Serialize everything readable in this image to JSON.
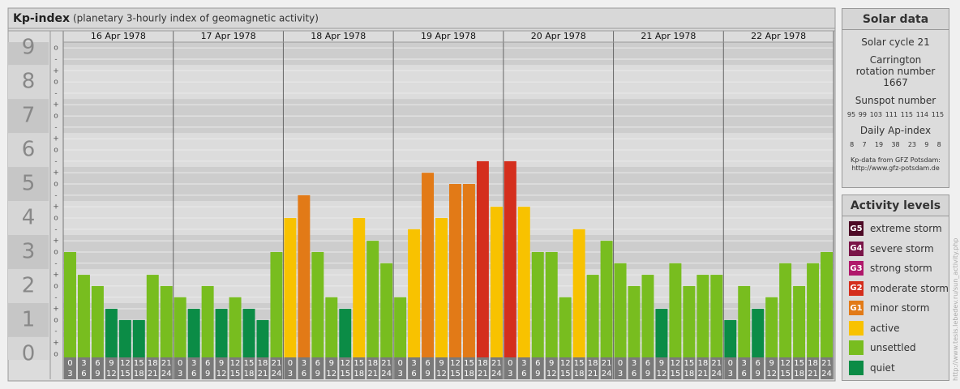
{
  "header": {
    "title": "Kp-index",
    "subtitle": "(planetary 3-hourly index of geomagnetic activity)"
  },
  "chart_data": {
    "type": "bar",
    "days": [
      "16 Apr 1978",
      "17 Apr 1978",
      "18 Apr 1978",
      "19 Apr 1978",
      "20 Apr 1978",
      "21 Apr 1978",
      "22 Apr 1978"
    ],
    "hours": [
      [
        "0",
        "3"
      ],
      [
        "3",
        "6"
      ],
      [
        "6",
        "9"
      ],
      [
        "9",
        "12"
      ],
      [
        "12",
        "15"
      ],
      [
        "15",
        "18"
      ],
      [
        "18",
        "21"
      ],
      [
        "21",
        "24"
      ]
    ],
    "values": [
      [
        3,
        2.33,
        2,
        1.33,
        1,
        1,
        2.33,
        2
      ],
      [
        1.67,
        1.33,
        2,
        1.33,
        1.67,
        1.33,
        1,
        3
      ],
      [
        4,
        4.67,
        3,
        1.67,
        1.33,
        4,
        3.33,
        2.67
      ],
      [
        1.67,
        3.67,
        5.33,
        4,
        5,
        5,
        5.67,
        4.33
      ],
      [
        5.67,
        4.33,
        3,
        3,
        1.67,
        3.67,
        2.33,
        3.33
      ],
      [
        2.67,
        2,
        2.33,
        1.33,
        2.67,
        2,
        2.33,
        2.33
      ],
      [
        1,
        2,
        1.33,
        1.67,
        2.67,
        2,
        2.67,
        3
      ]
    ],
    "colors": [
      [
        "#78bd1f",
        "#78bd1f",
        "#78bd1f",
        "#0b8c46",
        "#0b8c46",
        "#0b8c46",
        "#78bd1f",
        "#78bd1f"
      ],
      [
        "#78bd1f",
        "#0b8c46",
        "#78bd1f",
        "#0b8c46",
        "#78bd1f",
        "#0b8c46",
        "#0b8c46",
        "#78bd1f"
      ],
      [
        "#f8c200",
        "#e27a17",
        "#78bd1f",
        "#78bd1f",
        "#0b8c46",
        "#f8c200",
        "#78bd1f",
        "#78bd1f"
      ],
      [
        "#78bd1f",
        "#f8c200",
        "#e27a17",
        "#f8c200",
        "#e27a17",
        "#e27a17",
        "#d42e1d",
        "#f8c200"
      ],
      [
        "#d42e1d",
        "#f8c200",
        "#78bd1f",
        "#78bd1f",
        "#78bd1f",
        "#f8c200",
        "#78bd1f",
        "#78bd1f"
      ],
      [
        "#78bd1f",
        "#78bd1f",
        "#78bd1f",
        "#0b8c46",
        "#78bd1f",
        "#78bd1f",
        "#78bd1f",
        "#78bd1f"
      ],
      [
        "#0b8c46",
        "#78bd1f",
        "#0b8c46",
        "#78bd1f",
        "#78bd1f",
        "#78bd1f",
        "#78bd1f",
        "#78bd1f"
      ]
    ],
    "ylim": [
      -0.17,
      9.17
    ],
    "yticks": [
      0,
      1,
      2,
      3,
      4,
      5,
      6,
      7,
      8,
      9
    ],
    "minor_yticks": [
      {
        "value": 0,
        "label": "o"
      },
      {
        "value": 0.33,
        "label": "+"
      },
      {
        "value": 0.67,
        "label": "-"
      },
      {
        "value": 1,
        "label": "o"
      },
      {
        "value": 1.33,
        "label": "+"
      },
      {
        "value": 1.67,
        "label": "-"
      },
      {
        "value": 2,
        "label": "o"
      },
      {
        "value": 2.33,
        "label": "+"
      },
      {
        "value": 2.67,
        "label": "-"
      },
      {
        "value": 3,
        "label": "o"
      },
      {
        "value": 3.33,
        "label": "+"
      },
      {
        "value": 3.67,
        "label": "-"
      },
      {
        "value": 4,
        "label": "o"
      },
      {
        "value": 4.33,
        "label": "+"
      },
      {
        "value": 4.67,
        "label": "-"
      },
      {
        "value": 5,
        "label": "o"
      },
      {
        "value": 5.33,
        "label": "+"
      },
      {
        "value": 5.67,
        "label": "-"
      },
      {
        "value": 6,
        "label": "o"
      },
      {
        "value": 6.33,
        "label": "+"
      },
      {
        "value": 6.67,
        "label": "-"
      },
      {
        "value": 7,
        "label": "o"
      },
      {
        "value": 7.33,
        "label": "+"
      },
      {
        "value": 7.67,
        "label": "-"
      },
      {
        "value": 8,
        "label": "o"
      },
      {
        "value": 8.33,
        "label": "+"
      },
      {
        "value": 8.67,
        "label": "-"
      },
      {
        "value": 9,
        "label": "o"
      }
    ]
  },
  "solar": {
    "title": "Solar data",
    "cycle": "Solar cycle 21",
    "carrington": "Carrington rotation number 1667",
    "sunspot_title": "Sunspot number",
    "sunspots": [
      95,
      99,
      103,
      111,
      115,
      114,
      115
    ],
    "ap_title": "Daily Ap-index",
    "ap": [
      8,
      7,
      19,
      38,
      23,
      9,
      8
    ],
    "source": "Kp-data from GFZ Potsdam:",
    "source_url": "http://www.gfz-potsdam.de"
  },
  "levels": {
    "title": "Activity levels",
    "items": [
      {
        "code": "G5",
        "label": "extreme storm",
        "color": "#4d0a26"
      },
      {
        "code": "G4",
        "label": "severe storm",
        "color": "#7a1448"
      },
      {
        "code": "G3",
        "label": "strong storm",
        "color": "#b0186b"
      },
      {
        "code": "G2",
        "label": "moderate storm",
        "color": "#d42e1d"
      },
      {
        "code": "G1",
        "label": "minor storm",
        "color": "#e27a17"
      },
      {
        "label": "active",
        "color": "#f8c200"
      },
      {
        "label": "unsettled",
        "color": "#78bd1f"
      },
      {
        "label": "quiet",
        "color": "#0b8c46"
      }
    ]
  },
  "credit": "http://www.tesis.lebedev.ru/sun_activity.php"
}
